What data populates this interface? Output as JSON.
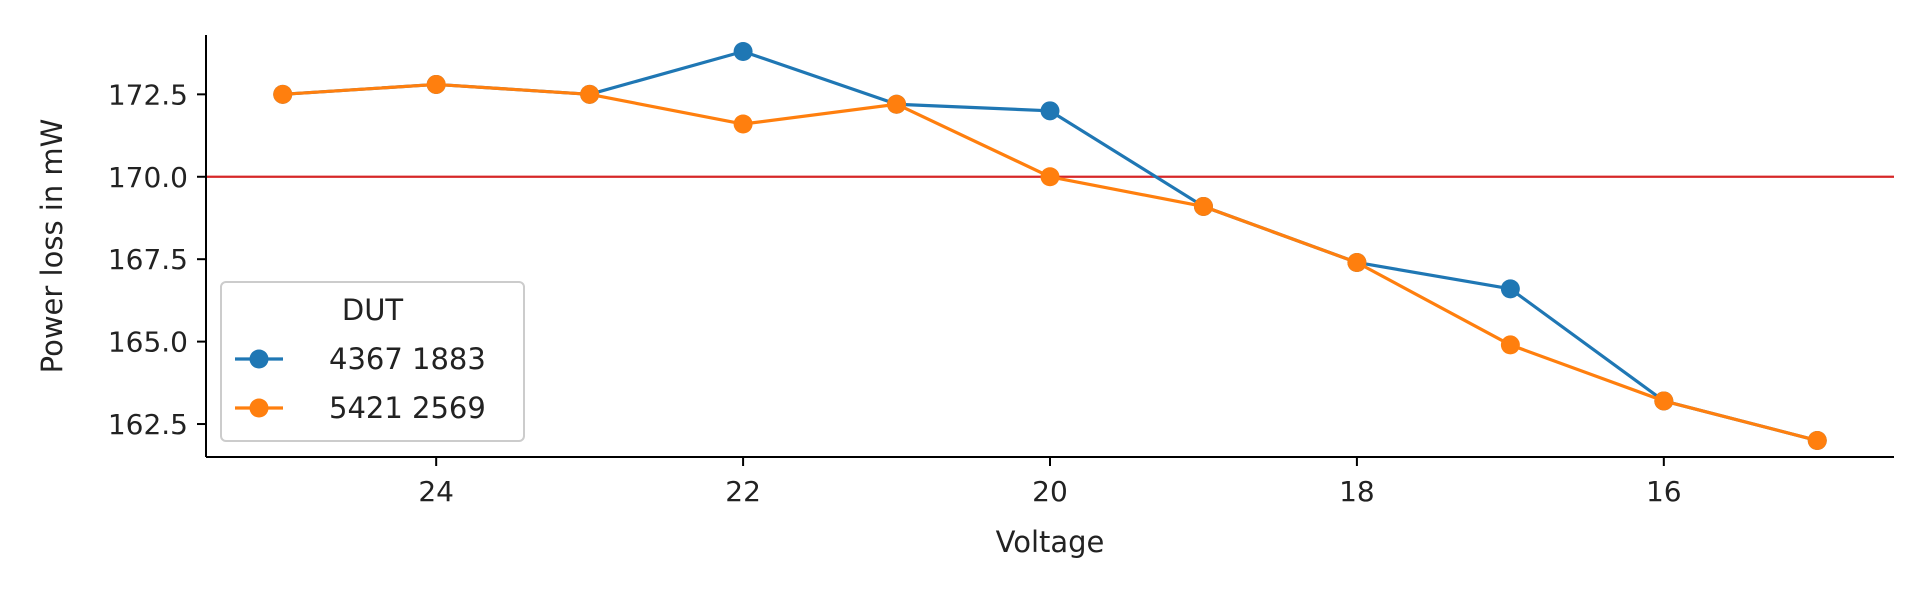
{
  "chart_data": {
    "type": "line",
    "title": "",
    "xlabel": "Voltage",
    "ylabel": "Power loss in mW",
    "x_ticks": [
      "24",
      "22",
      "20",
      "18",
      "16"
    ],
    "y_ticks": [
      "162.5",
      "165.0",
      "167.5",
      "170.0",
      "172.5"
    ],
    "x_axis_reversed": true,
    "xlim": [
      25.5,
      14.5
    ],
    "ylim": [
      161.5,
      174.3
    ],
    "grid": false,
    "legend": {
      "title": "DUT",
      "placement": "lower-left"
    },
    "series": [
      {
        "name": "4367 1883",
        "color": "#1f77b4",
        "points": [
          {
            "x": 25,
            "y": 172.5
          },
          {
            "x": 24,
            "y": 172.8
          },
          {
            "x": 23,
            "y": 172.5
          },
          {
            "x": 22,
            "y": 173.8
          },
          {
            "x": 21,
            "y": 172.2
          },
          {
            "x": 20,
            "y": 172.0
          },
          {
            "x": 19,
            "y": 169.1
          },
          {
            "x": 18,
            "y": 167.4
          },
          {
            "x": 17,
            "y": 166.6
          },
          {
            "x": 16,
            "y": 163.2
          },
          {
            "x": 15,
            "y": 162.0
          }
        ]
      },
      {
        "name": "5421 2569",
        "color": "#ff7f0e",
        "points": [
          {
            "x": 25,
            "y": 172.5
          },
          {
            "x": 24,
            "y": 172.8
          },
          {
            "x": 23,
            "y": 172.5
          },
          {
            "x": 22,
            "y": 171.6
          },
          {
            "x": 21,
            "y": 172.2
          },
          {
            "x": 20,
            "y": 170.0
          },
          {
            "x": 19,
            "y": 169.1
          },
          {
            "x": 18,
            "y": 167.4
          },
          {
            "x": 17,
            "y": 164.9
          },
          {
            "x": 16,
            "y": 163.2
          },
          {
            "x": 15,
            "y": 162.0
          }
        ]
      }
    ],
    "reference_line": {
      "y": 170.0,
      "color": "#d62728"
    }
  }
}
